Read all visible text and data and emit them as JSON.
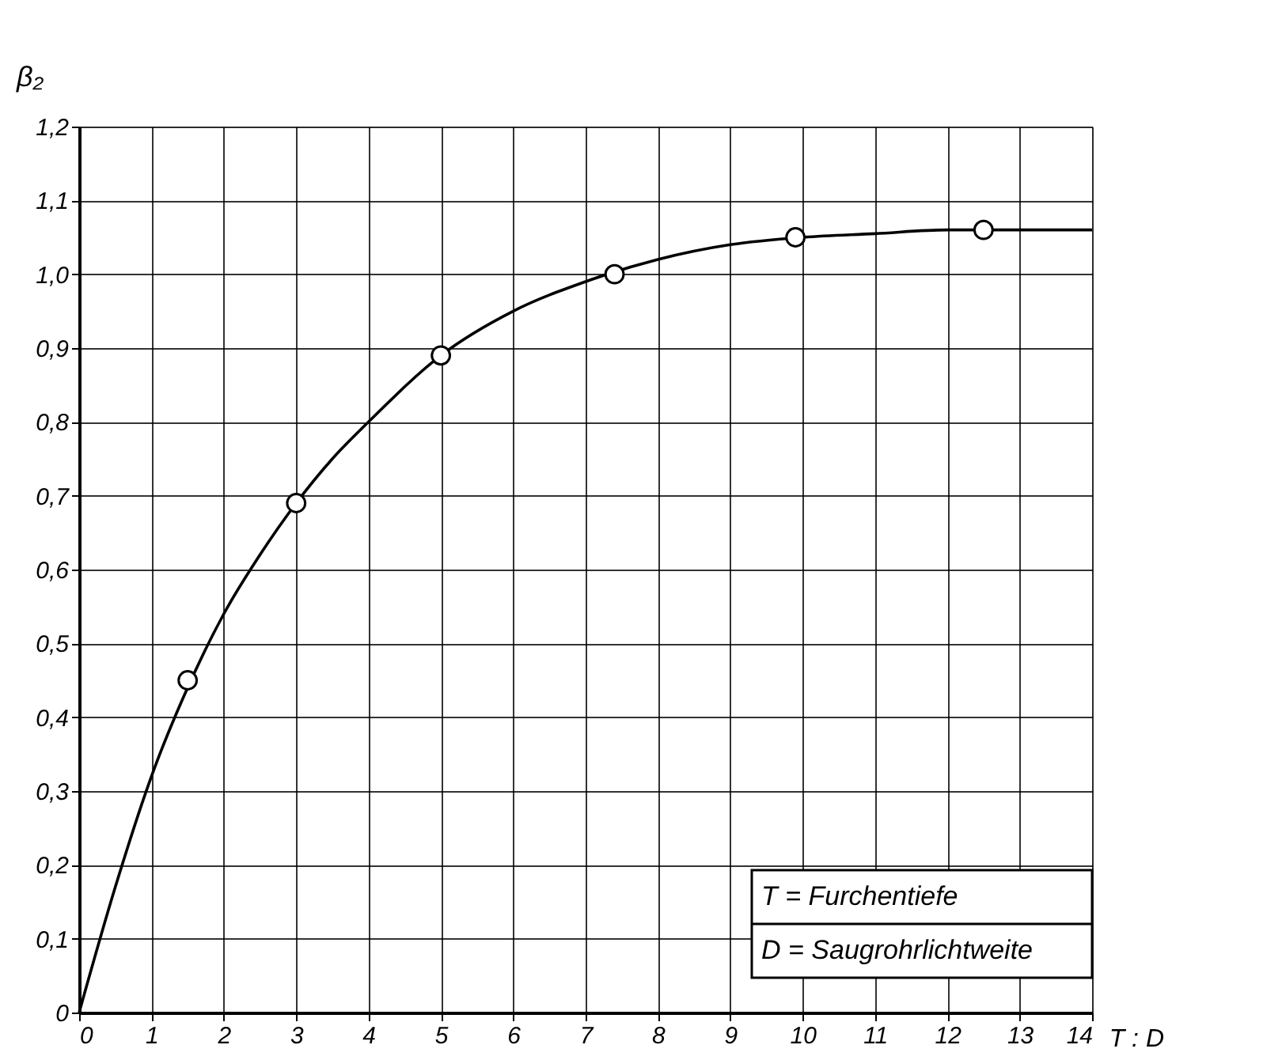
{
  "chart_data": {
    "type": "line",
    "xlabel": "T : D",
    "ylabel": "β₂",
    "xlim": [
      0,
      14
    ],
    "ylim": [
      0,
      1.2
    ],
    "xticks": [
      0,
      1,
      2,
      3,
      4,
      5,
      6,
      7,
      8,
      9,
      10,
      11,
      12,
      13,
      14
    ],
    "yticks": [
      0,
      {
        "value": 0.1,
        "label": "0,1"
      },
      {
        "value": 0.2,
        "label": "0,2"
      },
      {
        "value": 0.3,
        "label": "0,3"
      },
      {
        "value": 0.4,
        "label": "0,4"
      },
      {
        "value": 0.5,
        "label": "0,5"
      },
      {
        "value": 0.6,
        "label": "0,6"
      },
      {
        "value": 0.7,
        "label": "0,7"
      },
      {
        "value": 0.8,
        "label": "0,8"
      },
      {
        "value": 0.9,
        "label": "0,9"
      },
      {
        "value": 1.0,
        "label": "1,0"
      },
      {
        "value": 1.1,
        "label": "1,1"
      },
      {
        "value": 1.2,
        "label": "1,2"
      }
    ],
    "grid": true,
    "line_style": "solid",
    "series": [
      {
        "color": "#000000",
        "marker": "none",
        "x": [
          0,
          0.5,
          1,
          1.5,
          2,
          2.5,
          3,
          3.5,
          4,
          5,
          6,
          7,
          8,
          9,
          10,
          11,
          12,
          13,
          14
        ],
        "values": [
          0,
          0.17,
          0.32,
          0.44,
          0.54,
          0.62,
          0.69,
          0.75,
          0.8,
          0.89,
          0.95,
          0.99,
          1.02,
          1.04,
          1.05,
          1.055,
          1.06,
          1.06,
          1.06
        ]
      },
      {
        "type": "scatter",
        "color": "#000000",
        "marker": "circle",
        "x": [
          1.5,
          3,
          5,
          7.4,
          9.9,
          12.5
        ],
        "values": [
          0.45,
          0.69,
          0.89,
          1.0,
          1.05,
          1.06
        ]
      }
    ],
    "annotations": [
      "T = Furchentiefe",
      "D = Saugrohrlichtweite"
    ]
  }
}
